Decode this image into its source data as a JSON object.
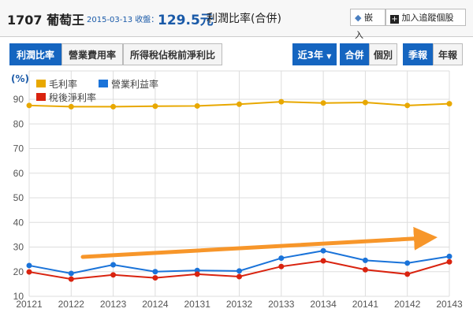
{
  "header": {
    "stock": "1707 葡萄王",
    "date": "2015-03-13 收盤：",
    "price": "129.5元",
    "page_title": "利潤比率(合併)",
    "embed": "嵌入",
    "add_watch": "加入追蹤個股"
  },
  "tabs": [
    "利潤比率",
    "營業費用率",
    "所得稅佔稅前淨利比"
  ],
  "controls": {
    "range": "近3年",
    "consolidated": "合併",
    "individual": "個別",
    "quarterly": "季報",
    "annual": "年報"
  },
  "chart_data": {
    "type": "line",
    "ylabel": "(%)",
    "ylim": [
      10,
      90
    ],
    "yticks": [
      10,
      20,
      30,
      40,
      50,
      60,
      70,
      80,
      90
    ],
    "categories": [
      "20121",
      "20122",
      "20123",
      "20124",
      "20131",
      "20132",
      "20133",
      "20134",
      "20141",
      "20142",
      "20143"
    ],
    "series": [
      {
        "name": "毛利率",
        "color": "#e8a800",
        "values": [
          87.5,
          87.0,
          87.0,
          87.2,
          87.3,
          88.0,
          89.0,
          88.5,
          88.7,
          87.5,
          88.2
        ]
      },
      {
        "name": "營業利益率",
        "color": "#1a73d9",
        "values": [
          22.5,
          19.3,
          22.8,
          20.0,
          20.5,
          20.3,
          25.5,
          28.5,
          24.6,
          23.5,
          26.2
        ]
      },
      {
        "name": "稅後淨利率",
        "color": "#d9230f",
        "values": [
          19.9,
          17.0,
          18.7,
          17.5,
          19.0,
          18.0,
          22.1,
          24.4,
          20.8,
          19.0,
          24.0
        ]
      }
    ],
    "legend": "top-left",
    "annotation": "upward trend arrow"
  }
}
